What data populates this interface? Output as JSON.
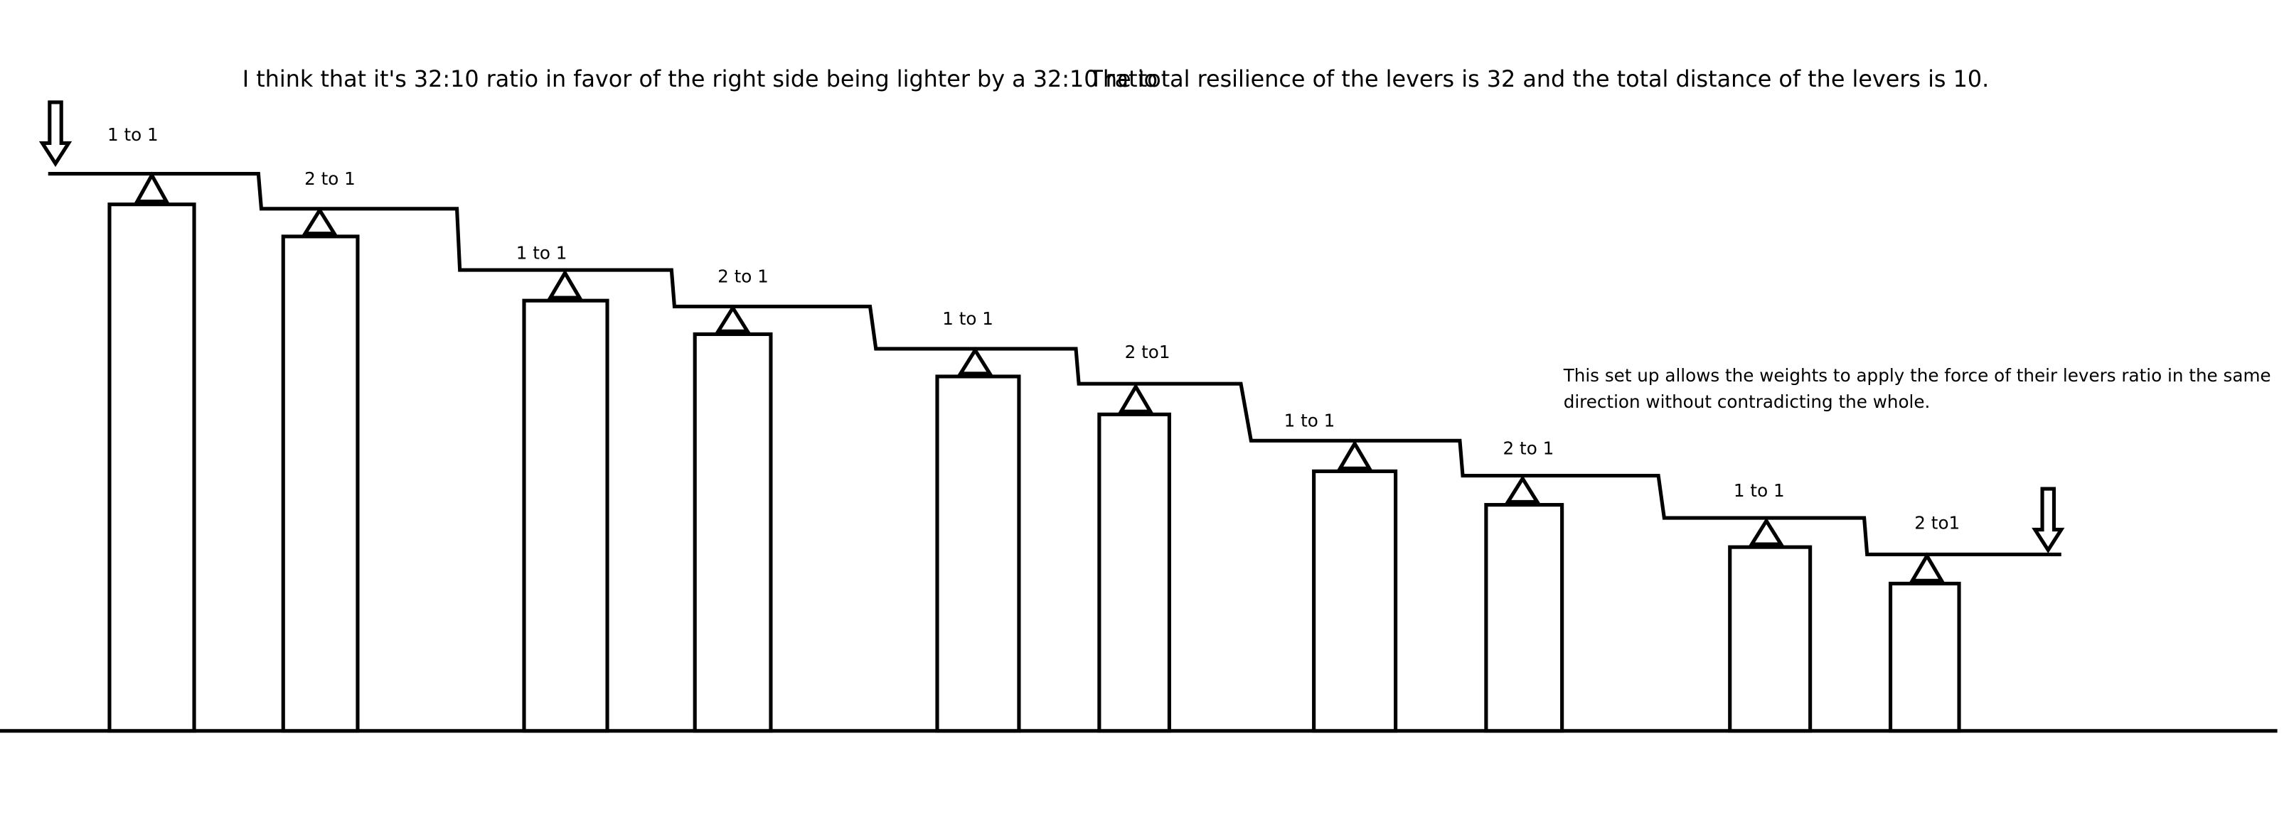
{
  "header": {
    "lines": [
      "I think that it's 32:10 ratio in favor of the right side being lighter by a 32:10 ratio",
      "The total resilience of the levers is 32 and the total distance of the levers is 10."
    ]
  },
  "note": {
    "lines": [
      "This set up allows the weights to apply the force of their levers ratio in the same",
      "direction without contradicting the whole."
    ]
  },
  "levers": [
    {
      "label": "1 to 1"
    },
    {
      "label": "2 to 1"
    },
    {
      "label": "1 to 1"
    },
    {
      "label": "2 to 1"
    },
    {
      "label": "1 to 1"
    },
    {
      "label": "2 to1"
    },
    {
      "label": "1 to 1"
    },
    {
      "label": "2 to 1"
    },
    {
      "label": "1 to 1"
    },
    {
      "label": "2 to1"
    }
  ]
}
